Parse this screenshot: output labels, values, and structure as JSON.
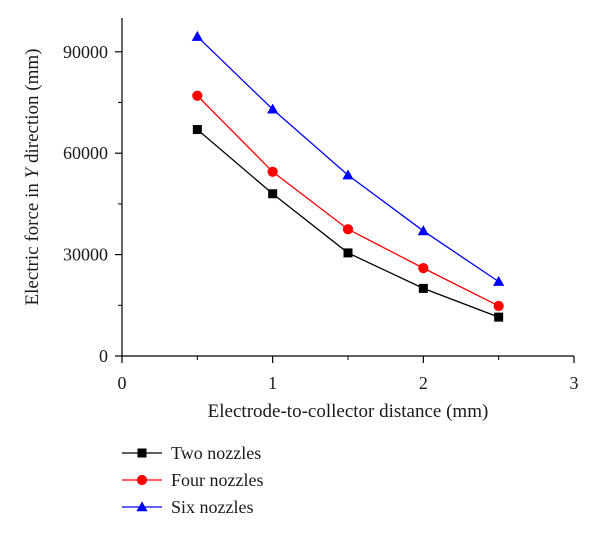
{
  "chart_data": {
    "type": "line",
    "title": "",
    "xlabel": "Electrode-to-collector distance (mm)",
    "ylabel_parts": [
      "Electric force in ",
      "Y",
      " direction (mm)"
    ],
    "xlim": [
      0,
      3
    ],
    "ylim": [
      0,
      100000
    ],
    "xticks": [
      0,
      1,
      2,
      3
    ],
    "xtick_labels": [
      "0",
      "1",
      "2",
      "3"
    ],
    "yticks": [
      0,
      30000,
      60000,
      90000
    ],
    "ytick_labels": [
      "0",
      "30000",
      "60000",
      "90000"
    ],
    "grid": false,
    "legend_position": "bottom-left, below plot",
    "x": [
      0.5,
      1.0,
      1.5,
      2.0,
      2.5
    ],
    "series": [
      {
        "name": "Two nozzles",
        "values": [
          67000,
          48000,
          30500,
          20000,
          11500
        ],
        "color": "#000000",
        "marker": "square"
      },
      {
        "name": "Four nozzles",
        "values": [
          77000,
          54500,
          37500,
          26000,
          14800
        ],
        "color": "#ff0000",
        "marker": "circle"
      },
      {
        "name": "Six nozzles",
        "values": [
          94500,
          73000,
          53500,
          37000,
          22000
        ],
        "color": "#0000ff",
        "marker": "triangle"
      }
    ]
  }
}
